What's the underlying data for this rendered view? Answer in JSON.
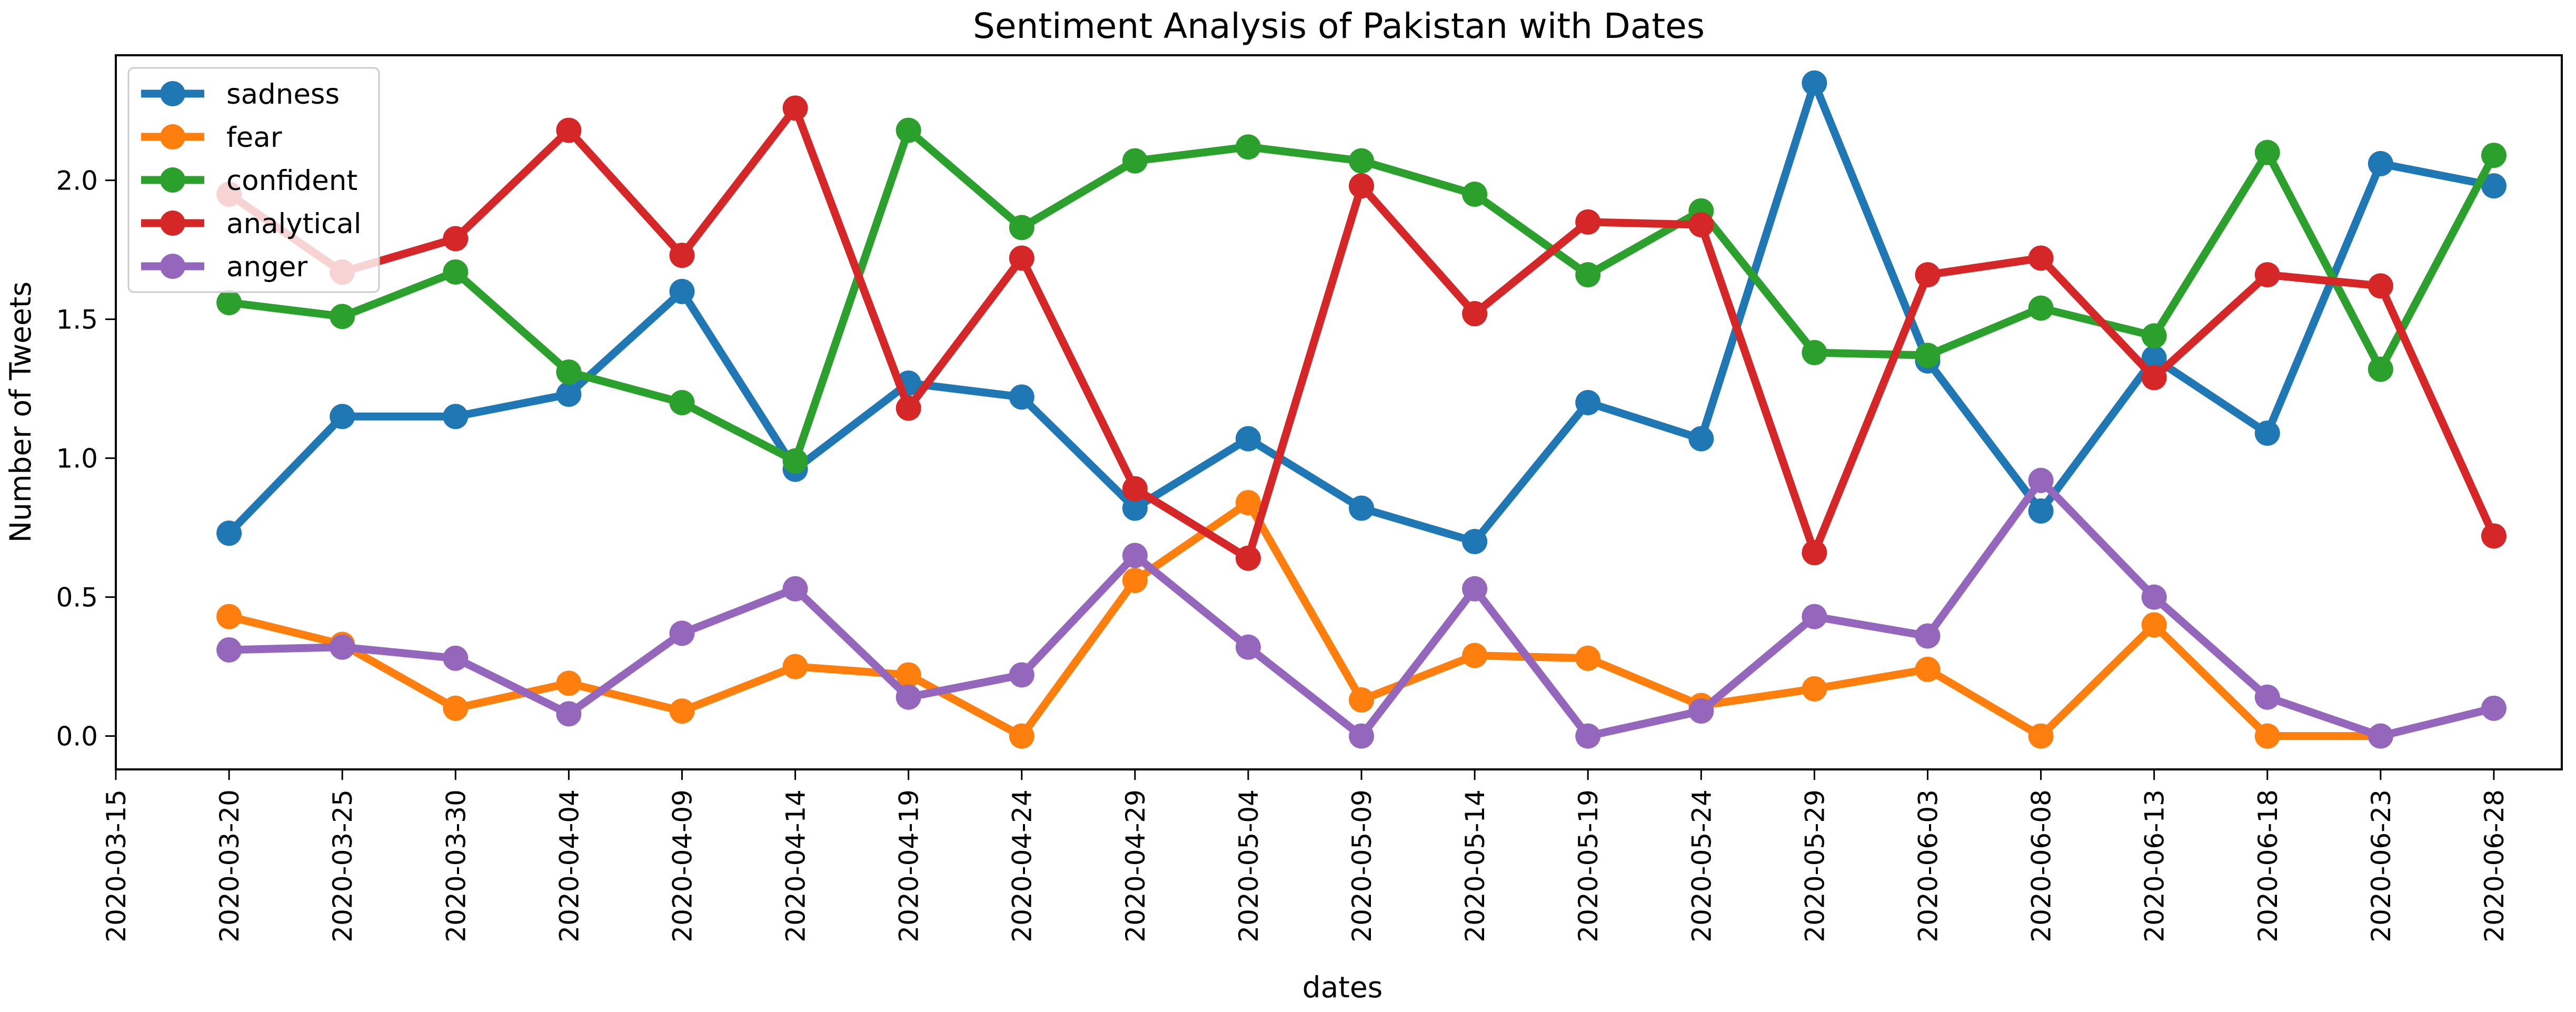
{
  "chart_data": {
    "type": "line",
    "title": "Sentiment Analysis of Pakistan with Dates",
    "xlabel": "dates",
    "ylabel": "Number of Tweets",
    "x": [
      "2020-03-20",
      "2020-03-25",
      "2020-03-30",
      "2020-04-04",
      "2020-04-09",
      "2020-04-14",
      "2020-04-19",
      "2020-04-24",
      "2020-04-29",
      "2020-05-04",
      "2020-05-09",
      "2020-05-14",
      "2020-05-19",
      "2020-05-24",
      "2020-05-29",
      "2020-06-03",
      "2020-06-08",
      "2020-06-13",
      "2020-06-18",
      "2020-06-23",
      "2020-06-28"
    ],
    "x_ticks": [
      "2020-03-15",
      "2020-03-20",
      "2020-03-25",
      "2020-03-30",
      "2020-04-04",
      "2020-04-09",
      "2020-04-14",
      "2020-04-19",
      "2020-04-24",
      "2020-04-29",
      "2020-05-04",
      "2020-05-09",
      "2020-05-14",
      "2020-05-19",
      "2020-05-24",
      "2020-05-29",
      "2020-06-03",
      "2020-06-08",
      "2020-06-13",
      "2020-06-18",
      "2020-06-23",
      "2020-06-28"
    ],
    "xlim": [
      "2020-03-15",
      "2020-07-01"
    ],
    "y_ticks": [
      "0.0",
      "0.5",
      "1.0",
      "1.5",
      "2.0"
    ],
    "ylim": [
      -0.12,
      2.45
    ],
    "grid": false,
    "legend_position": "upper-left",
    "series": [
      {
        "name": "sadness",
        "color": "#1f77b4",
        "values": [
          0.73,
          1.15,
          1.15,
          1.23,
          1.6,
          0.96,
          1.27,
          1.22,
          0.82,
          1.07,
          0.82,
          0.7,
          1.2,
          1.07,
          2.35,
          1.35,
          0.81,
          1.36,
          1.09,
          2.06,
          1.98
        ]
      },
      {
        "name": "fear",
        "color": "#ff7f0e",
        "values": [
          0.43,
          0.33,
          0.1,
          0.19,
          0.09,
          0.25,
          0.22,
          0.0,
          0.56,
          0.84,
          0.13,
          0.29,
          0.28,
          0.11,
          0.17,
          0.24,
          0.0,
          0.4,
          0.0,
          0.0,
          null
        ]
      },
      {
        "name": "confident",
        "color": "#2ca02c",
        "values": [
          1.56,
          1.51,
          1.67,
          1.31,
          1.2,
          0.99,
          2.18,
          1.83,
          2.07,
          2.12,
          2.07,
          1.95,
          1.66,
          1.89,
          1.38,
          1.37,
          1.54,
          1.44,
          2.1,
          1.32,
          2.09
        ]
      },
      {
        "name": "analytical",
        "color": "#d62728",
        "values": [
          1.95,
          1.67,
          1.79,
          2.18,
          1.73,
          2.26,
          1.18,
          1.72,
          0.89,
          0.64,
          1.98,
          1.52,
          1.85,
          1.84,
          0.66,
          1.66,
          1.72,
          1.29,
          1.66,
          1.62,
          0.72
        ]
      },
      {
        "name": "anger",
        "color": "#9467bd",
        "values": [
          0.31,
          0.32,
          0.28,
          0.08,
          0.37,
          0.53,
          0.14,
          0.22,
          0.65,
          0.32,
          0.0,
          0.53,
          0.0,
          0.09,
          0.43,
          0.36,
          0.92,
          0.5,
          0.14,
          0.0,
          0.1
        ]
      }
    ]
  }
}
